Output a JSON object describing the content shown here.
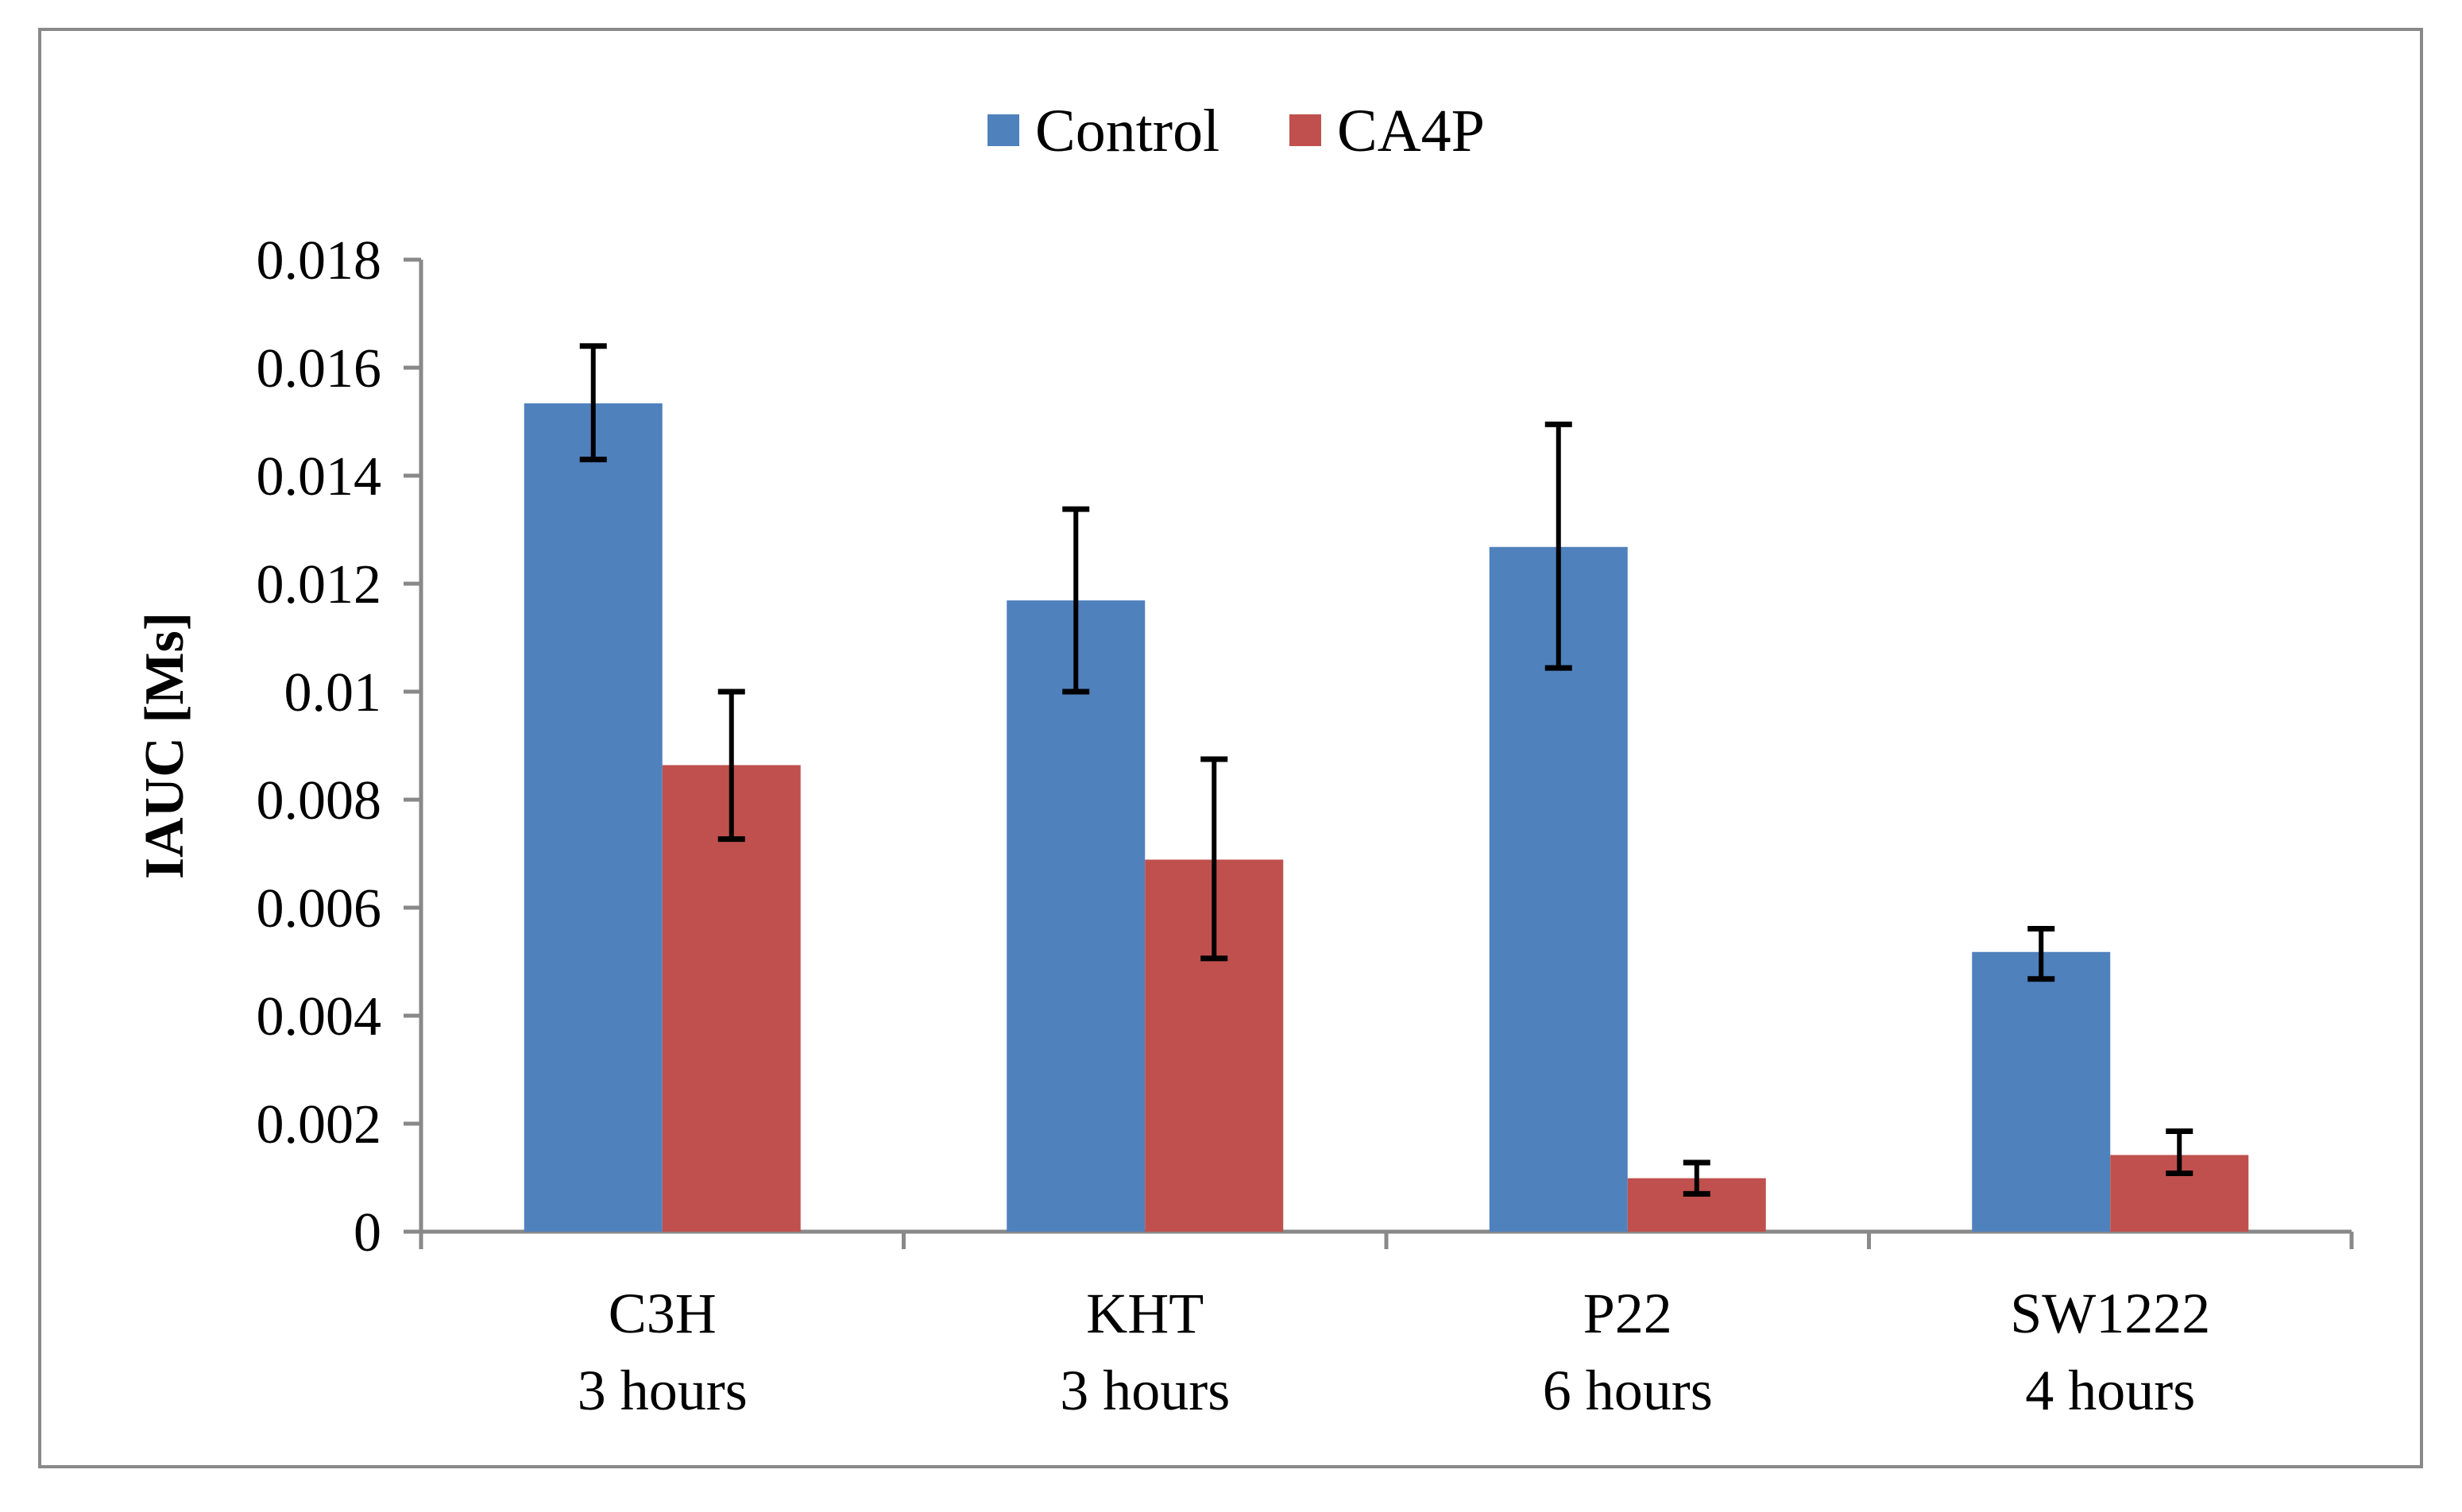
{
  "chart_data": {
    "type": "bar",
    "title": "",
    "xlabel": "",
    "ylabel": "IAUC [Ms]",
    "ylim": [
      0,
      0.018
    ],
    "yticks": [
      "0",
      "0.002",
      "0.004",
      "0.006",
      "0.008",
      "0.01",
      "0.012",
      "0.014",
      "0.016",
      "0.018"
    ],
    "ytick_values": [
      0,
      0.002,
      0.004,
      0.006,
      0.008,
      0.01,
      0.012,
      0.014,
      0.016,
      0.018
    ],
    "categories": [
      {
        "line1": "C3H",
        "line2": "3 hours"
      },
      {
        "line1": "KHT",
        "line2": "3 hours"
      },
      {
        "line1": "P22",
        "line2": "6 hours"
      },
      {
        "line1": "SW1222",
        "line2": "4 hours"
      }
    ],
    "legend_position": "top-center",
    "grid": false,
    "series": [
      {
        "name": "Control",
        "color": "#4F81BD",
        "values": [
          0.01534,
          0.01169,
          0.01268,
          0.00518
        ],
        "error_low": [
          0.0143,
          0.01,
          0.01044,
          0.00468
        ],
        "error_high": [
          0.0164,
          0.01338,
          0.01495,
          0.00561
        ]
      },
      {
        "name": "CA4P",
        "color": "#C0504D",
        "values": [
          0.00864,
          0.00689,
          0.00099,
          0.00142
        ],
        "error_low": [
          0.00727,
          0.00506,
          0.0007,
          0.00108
        ],
        "error_high": [
          0.01,
          0.00875,
          0.00128,
          0.00186
        ]
      }
    ]
  }
}
